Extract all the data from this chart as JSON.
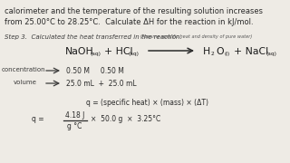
{
  "bg_color": "#eeebe5",
  "top_text_line1": "calorimeter and the temperature of the resulting solution increases",
  "top_text_line2": "from 25.00°C to 28.25°C.  Calculate ΔH for the reaction in kJ/mol.",
  "step_text": "Step 3.  Calculated the heat transferred in the reaction.",
  "step_small": " (Assume specific heat and density of pure water)",
  "naoh": "NaOH",
  "naoh_sub": "(aq)",
  "hcl": "+ HCl",
  "hcl_sub": "(aq)",
  "h2o_h": "H",
  "h2o_2": "2",
  "h2o_o": "O",
  "h2o_sub": "(l)",
  "nacl": "+ NaCl",
  "nacl_sub": "(aq)",
  "conc_label": "concentration",
  "conc_val": "0.50 M     0.50 M",
  "vol_label": "volume",
  "vol_val": "25.0 mL  +  25.0 mL",
  "q_formula": "q = (specific heat) × (mass) × (ΔT)",
  "q_eq": "q =",
  "q_num": "4.18 J",
  "q_den": "g °C",
  "q_rest": "×  50.0 g  ×  3.25°C"
}
